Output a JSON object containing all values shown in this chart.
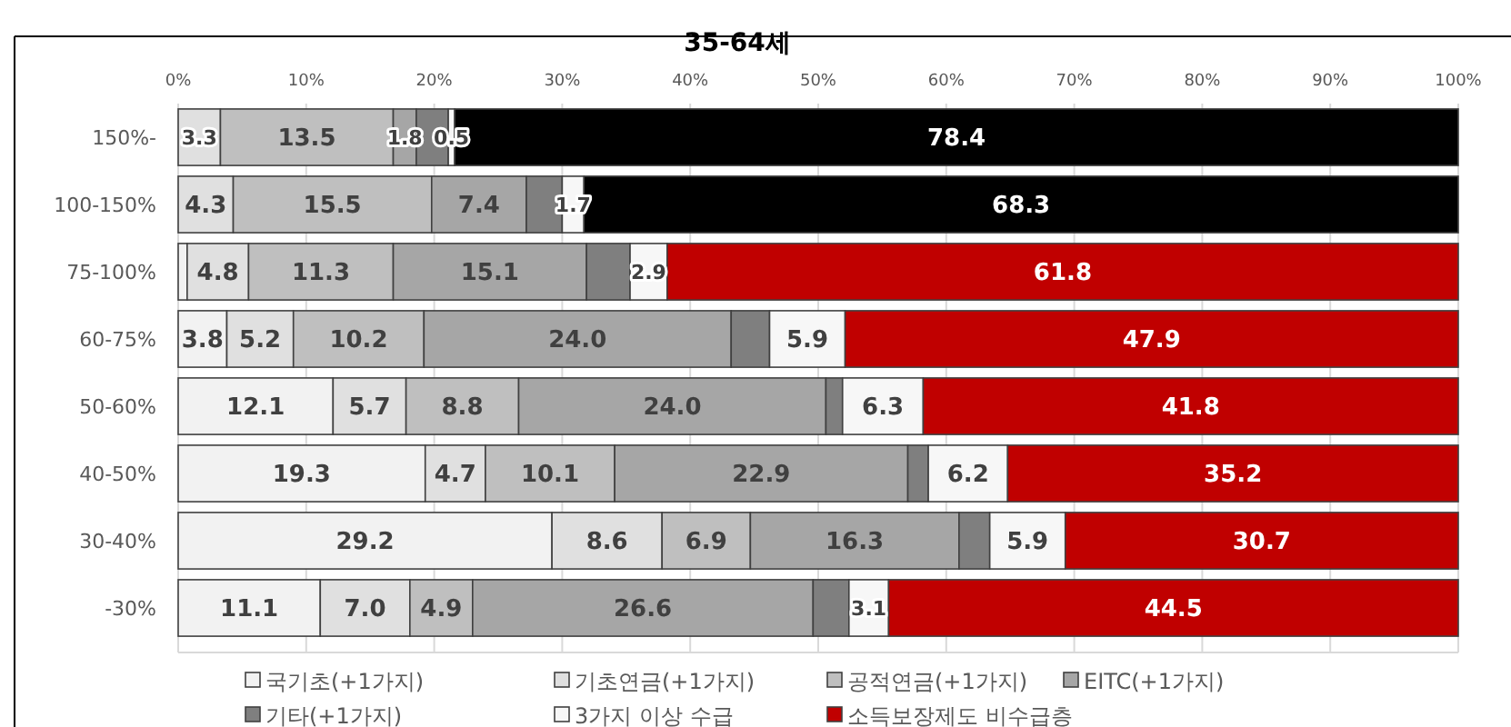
{
  "chart_data": {
    "type": "bar",
    "orientation": "horizontal",
    "stacked": true,
    "title": "35-64세",
    "categories": [
      "150%-",
      "100-150%",
      "75-100%",
      "60-75%",
      "50-60%",
      "40-50%",
      "30-40%",
      "-30%"
    ],
    "xlim": [
      0,
      100
    ],
    "xticks": [
      {
        "value": 0,
        "label": "0%"
      },
      {
        "value": 10,
        "label": "10%"
      },
      {
        "value": 20,
        "label": "20%"
      },
      {
        "value": 30,
        "label": "30%"
      },
      {
        "value": 40,
        "label": "40%"
      },
      {
        "value": 50,
        "label": "50%"
      },
      {
        "value": 60,
        "label": "60%"
      },
      {
        "value": 70,
        "label": "70%"
      },
      {
        "value": 80,
        "label": "80%"
      },
      {
        "value": 90,
        "label": "90%"
      },
      {
        "value": 100,
        "label": "100%"
      }
    ],
    "grid": "x",
    "legend": "bottom",
    "series": [
      {
        "name": "국기초(+1가지)",
        "color": "#f2f2f2",
        "values": [
          0,
          0,
          0.7,
          3.8,
          12.1,
          19.3,
          29.2,
          11.1
        ],
        "value_labels": [
          null,
          null,
          null,
          "3.8",
          "12.1",
          "19.3",
          "29.2",
          "11.1"
        ]
      },
      {
        "name": "기초연금(+1가지)",
        "color": "#e0e0e0",
        "values": [
          3.3,
          4.3,
          4.8,
          5.2,
          5.7,
          4.7,
          8.6,
          7.0
        ],
        "value_labels": [
          "3.3",
          "4.3",
          "4.8",
          "5.2",
          "5.7",
          "4.7",
          "8.6",
          "7.0"
        ]
      },
      {
        "name": "공적연금(+1가지)",
        "color": "#bfbfbf",
        "values": [
          13.5,
          15.5,
          11.3,
          10.2,
          8.8,
          10.1,
          6.9,
          4.9
        ],
        "value_labels": [
          "13.5",
          "15.5",
          "11.3",
          "10.2",
          "8.8",
          "10.1",
          "6.9",
          "4.9"
        ]
      },
      {
        "name": "EITC(+1가지)",
        "color": "#a6a6a6",
        "values": [
          1.8,
          7.4,
          15.1,
          24.0,
          24.0,
          22.9,
          16.3,
          26.6
        ],
        "value_labels": [
          "1.8",
          "7.4",
          "15.1",
          "24.0",
          "24.0",
          "22.9",
          "16.3",
          "26.6"
        ]
      },
      {
        "name": "기타(+1가지)",
        "color": "#7f7f7f",
        "values": [
          2.5,
          2.8,
          3.4,
          3.0,
          1.3,
          1.6,
          2.4,
          2.8
        ],
        "value_labels": [
          null,
          null,
          null,
          null,
          null,
          null,
          null,
          null
        ]
      },
      {
        "name": "3가지 이상 수급",
        "color": "#f7f7f7",
        "values": [
          0.5,
          1.7,
          2.9,
          5.9,
          6.3,
          6.2,
          5.9,
          3.1
        ],
        "value_labels": [
          "0.5",
          "1.7",
          "2.9",
          "5.9",
          "6.3",
          "6.2",
          "5.9",
          "3.1"
        ]
      },
      {
        "name": "소득보장제도 비수급층",
        "color": "#c00000",
        "colors": [
          "#000000",
          "#000000",
          "#c00000",
          "#c00000",
          "#c00000",
          "#c00000",
          "#c00000",
          "#c00000"
        ],
        "values": [
          78.4,
          68.3,
          61.8,
          47.9,
          41.8,
          35.2,
          30.7,
          44.5
        ],
        "value_labels": [
          "78.4",
          "68.3",
          "61.8",
          "47.9",
          "41.8",
          "35.2",
          "30.7",
          "44.5"
        ]
      }
    ]
  }
}
